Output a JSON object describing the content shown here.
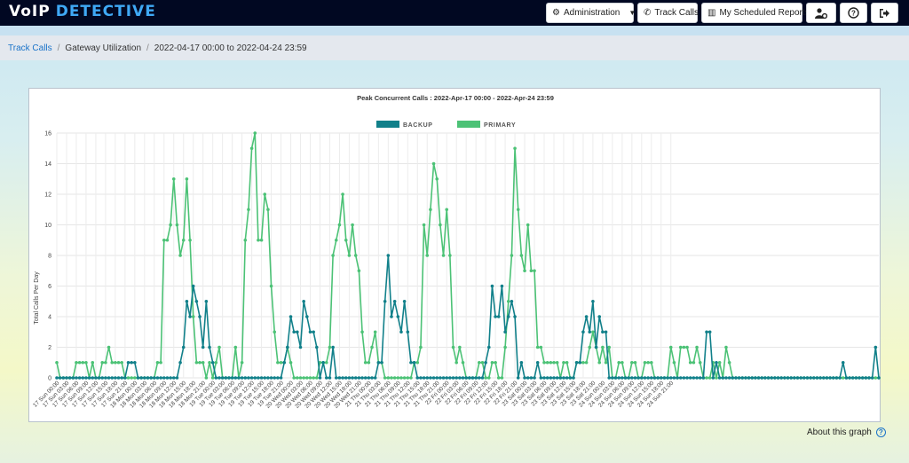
{
  "header": {
    "logo_voip": "VoIP",
    "logo_detective": "DETECTIVE",
    "buttons": {
      "administration": "Administration",
      "track_calls": "Track Calls",
      "scheduled_reports": "My Scheduled Reports"
    }
  },
  "breadcrumb": {
    "track_calls": "Track Calls",
    "gateway_utilization": "Gateway Utilization",
    "range": "2022-04-17 00:00 to 2022-04-24 23:59"
  },
  "about_graph": "About this graph",
  "colors": {
    "backup": "#11808a",
    "primary": "#4cc276",
    "accent": "#1a73c9"
  },
  "chart_data": {
    "type": "line",
    "title": "Peak Concurrent Calls : 2022-Apr-17 00:00 - 2022-Apr-24 23:59",
    "xlabel": "",
    "ylabel": "Total Calls Per Day",
    "ylim": [
      0,
      16
    ],
    "yticks": [
      0,
      2,
      4,
      6,
      8,
      10,
      12,
      14,
      16
    ],
    "grid": true,
    "legend_position": "top-center",
    "x_tick_labels": [
      "17 Sun 00:00",
      "17 Sun 03:00",
      "17 Sun 06:00",
      "17 Sun 09:00",
      "17 Sun 12:00",
      "17 Sun 15:00",
      "17 Sun 18:00",
      "17 Sun 21:00",
      "18 Mon 00:00",
      "18 Mon 03:00",
      "18 Mon 06:00",
      "18 Mon 09:00",
      "18 Mon 12:00",
      "18 Mon 15:00",
      "18 Mon 18:00",
      "18 Mon 21:00",
      "19 Tue 00:00",
      "19 Tue 03:00",
      "19 Tue 06:00",
      "19 Tue 09:00",
      "19 Tue 12:00",
      "19 Tue 15:00",
      "19 Tue 18:00",
      "19 Tue 21:00",
      "20 Wed 00:00",
      "20 Wed 03:00",
      "20 Wed 06:00",
      "20 Wed 09:00",
      "20 Wed 12:00",
      "20 Wed 15:00",
      "20 Wed 18:00",
      "20 Wed 21:00",
      "21 Thu 00:00",
      "21 Thu 03:00",
      "21 Thu 06:00",
      "21 Thu 09:00",
      "21 Thu 12:00",
      "21 Thu 15:00",
      "21 Thu 18:00",
      "21 Thu 21:00",
      "22 Fri 00:00",
      "22 Fri 03:00",
      "22 Fri 06:00",
      "22 Fri 09:00",
      "22 Fri 12:00",
      "22 Fri 15:00",
      "22 Fri 18:00",
      "22 Fri 21:00",
      "23 Sat 00:00",
      "23 Sat 03:00",
      "23 Sat 06:00",
      "23 Sat 09:00",
      "23 Sat 12:00",
      "23 Sat 15:00",
      "23 Sat 18:00",
      "23 Sat 21:00",
      "24 Sun 00:00",
      "24 Sun 03:00",
      "24 Sun 06:00",
      "24 Sun 09:00",
      "24 Sun 12:00",
      "24 Sun 15:00",
      "24 Sun 18:00",
      "24 Sun 21:00"
    ],
    "x_step_hours": 1,
    "series": [
      {
        "name": "BACKUP",
        "color": "#11808a",
        "values": [
          0,
          0,
          0,
          0,
          0,
          0,
          0,
          0,
          0,
          0,
          0,
          0,
          0,
          0,
          0,
          0,
          0,
          0,
          0,
          0,
          0,
          0,
          1,
          1,
          1,
          0,
          0,
          0,
          0,
          0,
          0,
          0,
          0,
          0,
          0,
          0,
          0,
          0,
          1,
          2,
          5,
          4,
          6,
          5,
          4,
          2,
          5,
          2,
          1,
          0,
          0,
          0,
          0,
          0,
          0,
          0,
          0,
          0,
          0,
          0,
          0,
          0,
          0,
          0,
          0,
          0,
          0,
          0,
          0,
          0,
          1,
          2,
          4,
          3,
          3,
          2,
          5,
          4,
          3,
          3,
          2,
          0,
          1,
          0,
          0,
          2,
          0,
          0,
          0,
          0,
          0,
          0,
          0,
          0,
          0,
          0,
          0,
          0,
          0,
          1,
          1,
          5,
          8,
          4,
          5,
          4,
          3,
          5,
          3,
          1,
          1,
          0,
          0,
          0,
          0,
          0,
          0,
          0,
          0,
          0,
          0,
          0,
          0,
          0,
          0,
          0,
          0,
          0,
          0,
          0,
          0,
          0,
          1,
          2,
          6,
          4,
          4,
          6,
          3,
          4,
          5,
          4,
          0,
          1,
          0,
          0,
          0,
          0,
          1,
          0,
          0,
          0,
          0,
          0,
          0,
          0,
          0,
          0,
          0,
          0,
          1,
          1,
          3,
          4,
          3,
          5,
          2,
          4,
          3,
          3,
          0,
          0,
          0,
          0,
          0,
          0,
          0,
          0,
          0,
          0,
          0,
          0,
          0,
          0,
          0,
          0,
          0,
          0,
          0,
          0,
          0,
          0,
          0,
          0,
          0,
          0,
          0,
          0,
          0,
          0,
          3,
          3,
          0,
          1,
          0,
          0,
          0,
          0,
          0,
          0,
          0,
          0,
          0,
          0,
          0,
          0,
          0,
          0,
          0,
          0,
          0,
          0,
          0,
          0,
          0,
          0,
          0,
          0,
          0,
          0,
          0,
          0,
          0,
          0,
          0,
          0,
          0,
          0,
          0,
          0,
          0,
          0,
          1,
          0,
          0,
          0,
          0,
          0,
          0,
          0,
          0,
          0,
          2,
          0
        ]
      },
      {
        "name": "PRIMARY",
        "color": "#4cc276",
        "values": [
          1,
          0,
          0,
          0,
          0,
          0,
          1,
          1,
          1,
          1,
          0,
          1,
          0,
          0,
          1,
          1,
          2,
          1,
          1,
          1,
          1,
          0,
          0,
          0,
          0,
          0,
          0,
          0,
          0,
          0,
          0,
          1,
          1,
          9,
          9,
          10,
          13,
          10,
          8,
          9,
          13,
          9,
          4,
          1,
          1,
          1,
          0,
          1,
          0,
          1,
          2,
          0,
          0,
          0,
          0,
          2,
          0,
          1,
          9,
          11,
          15,
          16,
          9,
          9,
          12,
          11,
          6,
          3,
          1,
          1,
          1,
          2,
          1,
          0,
          0,
          0,
          0,
          0,
          0,
          0,
          0,
          1,
          1,
          1,
          2,
          8,
          9,
          10,
          12,
          9,
          8,
          10,
          8,
          7,
          3,
          1,
          1,
          2,
          3,
          1,
          1,
          0,
          0,
          0,
          0,
          0,
          0,
          0,
          0,
          0,
          1,
          1,
          2,
          10,
          8,
          11,
          14,
          13,
          10,
          8,
          11,
          8,
          2,
          1,
          2,
          1,
          0,
          0,
          0,
          0,
          1,
          1,
          0,
          0,
          1,
          1,
          0,
          0,
          2,
          5,
          8,
          15,
          11,
          8,
          7,
          10,
          7,
          7,
          2,
          2,
          1,
          1,
          1,
          1,
          1,
          0,
          1,
          1,
          0,
          0,
          1,
          1,
          1,
          1,
          2,
          3,
          2,
          1,
          2,
          1,
          2,
          0,
          0,
          1,
          1,
          0,
          0,
          1,
          1,
          0,
          0,
          1,
          1,
          1,
          0,
          0,
          0,
          0,
          0,
          2,
          1,
          0,
          2,
          2,
          2,
          1,
          1,
          2,
          1,
          0,
          0,
          0,
          1,
          0,
          1,
          0,
          2,
          1,
          0,
          0,
          0,
          0,
          0,
          0,
          0,
          0,
          0,
          0,
          0,
          0,
          0,
          0,
          0,
          0,
          0,
          0,
          0,
          0,
          0,
          0,
          0,
          0,
          0,
          0,
          0,
          0,
          0,
          0,
          0,
          0,
          0,
          0,
          0,
          0,
          0,
          0,
          0,
          0,
          0,
          0,
          0,
          0,
          0,
          0
        ]
      }
    ]
  }
}
